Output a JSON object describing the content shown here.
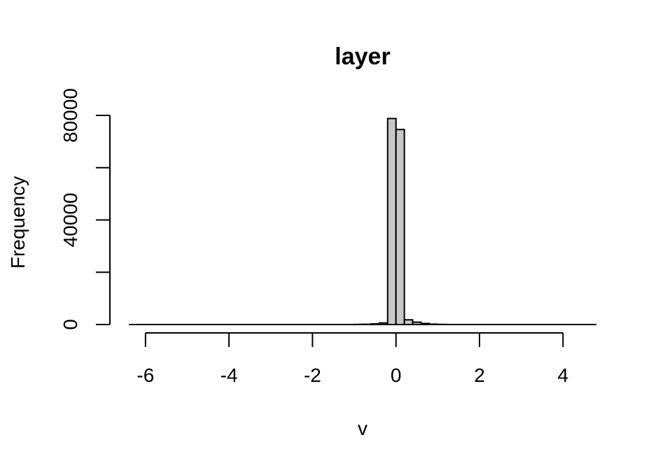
{
  "chart_data": {
    "type": "bar",
    "title": "layer",
    "xlabel": "v",
    "ylabel": "Frequency",
    "xlim": [
      -6.4,
      4.8
    ],
    "ylim": [
      0,
      80000
    ],
    "x_ticks": [
      -6,
      -4,
      -2,
      0,
      2,
      4
    ],
    "x_tick_labels": [
      "-6",
      "-4",
      "-2",
      "0",
      "2",
      "4"
    ],
    "y_ticks": [
      0,
      20000,
      40000,
      60000,
      80000
    ],
    "y_tick_labels": [
      "0",
      "",
      "40000",
      "",
      "80000"
    ],
    "bin_width": 0.2,
    "bins": [
      {
        "x0": -1.0,
        "x1": -0.8,
        "count": 50
      },
      {
        "x0": -0.8,
        "x1": -0.6,
        "count": 100
      },
      {
        "x0": -0.6,
        "x1": -0.4,
        "count": 250
      },
      {
        "x0": -0.4,
        "x1": -0.2,
        "count": 600
      },
      {
        "x0": -0.2,
        "x1": 0.0,
        "count": 78800
      },
      {
        "x0": 0.0,
        "x1": 0.2,
        "count": 74600
      },
      {
        "x0": 0.2,
        "x1": 0.4,
        "count": 1800
      },
      {
        "x0": 0.4,
        "x1": 0.6,
        "count": 900
      },
      {
        "x0": 0.6,
        "x1": 0.8,
        "count": 400
      },
      {
        "x0": 0.8,
        "x1": 1.0,
        "count": 150
      },
      {
        "x0": 1.0,
        "x1": 1.2,
        "count": 60
      }
    ],
    "bar_fill": "#c8c8c8",
    "bar_stroke": "#000000",
    "grid": false,
    "legend": "none"
  }
}
